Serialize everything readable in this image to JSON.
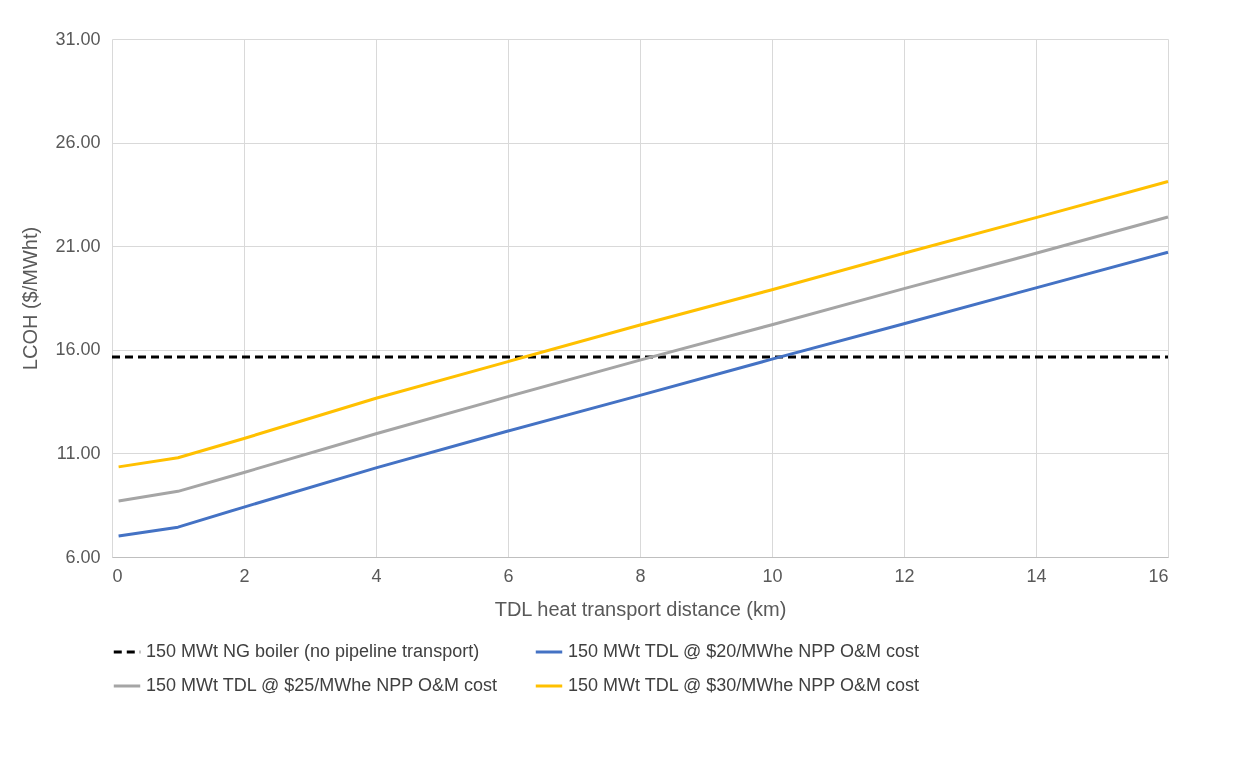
{
  "chart_data": {
    "type": "line",
    "xlabel": "TDL heat transport distance (km)",
    "ylabel": "LCOH ($/MWht)",
    "xlim": [
      0,
      16
    ],
    "xticks": [
      0,
      2,
      4,
      6,
      8,
      10,
      12,
      14,
      16
    ],
    "ylim": [
      6,
      31
    ],
    "yticks": [
      {
        "value": 6,
        "label": "6.00"
      },
      {
        "value": 11,
        "label": "11.00"
      },
      {
        "value": 16,
        "label": "16.00"
      },
      {
        "value": 21,
        "label": "21.00"
      },
      {
        "value": 26,
        "label": "26.00"
      },
      {
        "value": 31,
        "label": "31.00"
      }
    ],
    "grid": true,
    "legend": "bottom",
    "line_style": "solid",
    "series": [
      {
        "name": "150 MWt NG boiler (no pipeline transport)",
        "color": "#000000",
        "line_style": "dashed",
        "x": [
          0,
          16
        ],
        "values": [
          15.65,
          15.65
        ]
      },
      {
        "name": "150 MWt TDL @ $20/MWhe NPP O&M cost",
        "color": "#4472c4",
        "x": [
          0.1,
          1,
          2,
          4,
          6,
          8,
          10,
          12,
          14,
          16
        ],
        "values": [
          7.01,
          7.44,
          8.41,
          10.3,
          12.08,
          13.8,
          15.55,
          17.26,
          18.99,
          20.71
        ]
      },
      {
        "name": "150 MWt TDL @ $25/MWhe NPP O&M cost",
        "color": "#a5a5a5",
        "x": [
          0.1,
          1,
          2,
          4,
          6,
          8,
          10,
          12,
          14,
          16
        ],
        "values": [
          8.7,
          9.17,
          10.08,
          11.95,
          13.74,
          15.5,
          17.21,
          18.95,
          20.66,
          22.41
        ]
      },
      {
        "name": "150 MWt TDL @ $30/MWhe NPP O&M cost",
        "color": "#ffc000",
        "x": [
          0.1,
          1,
          2,
          4,
          6,
          8,
          10,
          12,
          14,
          16
        ],
        "values": [
          10.35,
          10.79,
          11.72,
          13.66,
          15.43,
          17.2,
          18.9,
          20.66,
          22.38,
          24.12
        ]
      }
    ]
  }
}
